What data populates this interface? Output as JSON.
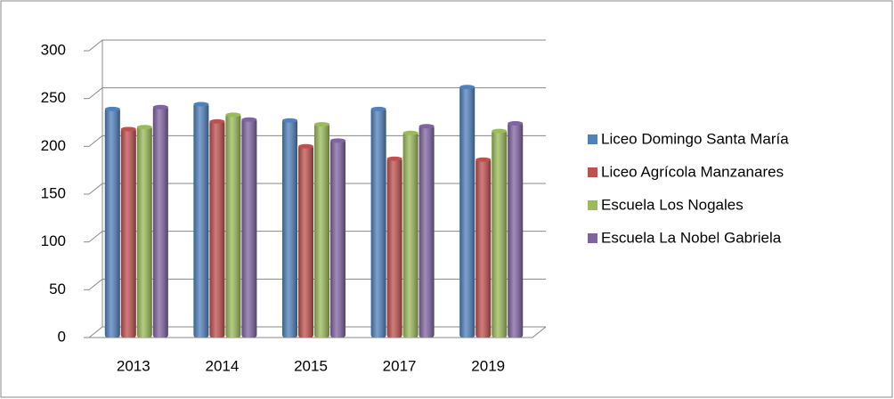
{
  "chart_data": {
    "type": "bar",
    "categories": [
      "2013",
      "2014",
      "2015",
      "2017",
      "2019"
    ],
    "series": [
      {
        "name": "Liceo Domingo Santa María",
        "color": "#4f81bd",
        "values": [
          240,
          245,
          228,
          240,
          263
        ]
      },
      {
        "name": "Liceo Agrícola Manzanares",
        "color": "#c0504d",
        "values": [
          219,
          227,
          201,
          188,
          187
        ]
      },
      {
        "name": "Escuela Los Nogales",
        "color": "#9bbb59",
        "values": [
          221,
          234,
          224,
          215,
          217
        ]
      },
      {
        "name": "Escuela La Nobel Gabriela",
        "color": "#8064a2",
        "values": [
          242,
          229,
          207,
          222,
          225
        ]
      }
    ],
    "ylim": [
      0,
      300
    ],
    "yticks": [
      0,
      50,
      100,
      150,
      200,
      250,
      300
    ],
    "grid": true,
    "legend": "right"
  }
}
